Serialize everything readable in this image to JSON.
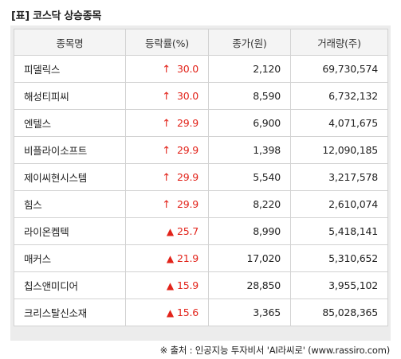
{
  "title": "[표] 코스닥 상승종목",
  "table": {
    "headers": [
      "종목명",
      "등락률(%)",
      "종가(원)",
      "거래량(주)"
    ],
    "rows": [
      {
        "name": "피델릭스",
        "rate": "30.0",
        "marker": "↑",
        "price": "2,120",
        "volume": "69,730,574"
      },
      {
        "name": "해성티피씨",
        "rate": "30.0",
        "marker": "↑",
        "price": "8,590",
        "volume": "6,732,132"
      },
      {
        "name": "엔텔스",
        "rate": "29.9",
        "marker": "↑",
        "price": "6,900",
        "volume": "4,071,675"
      },
      {
        "name": "비플라이소프트",
        "rate": "29.9",
        "marker": "↑",
        "price": "1,398",
        "volume": "12,090,185"
      },
      {
        "name": "제이씨현시스템",
        "rate": "29.9",
        "marker": "↑",
        "price": "5,540",
        "volume": "3,217,578"
      },
      {
        "name": "힘스",
        "rate": "29.9",
        "marker": "↑",
        "price": "8,220",
        "volume": "2,610,074"
      },
      {
        "name": "라이온켐텍",
        "rate": "25.7",
        "marker": "▲",
        "price": "8,990",
        "volume": "5,418,141"
      },
      {
        "name": "매커스",
        "rate": "21.9",
        "marker": "▲",
        "price": "17,020",
        "volume": "5,310,652"
      },
      {
        "name": "칩스앤미디어",
        "rate": "15.9",
        "marker": "▲",
        "price": "28,850",
        "volume": "3,955,102"
      },
      {
        "name": "크리스탈신소재",
        "rate": "15.6",
        "marker": "▲",
        "price": "3,365",
        "volume": "85,028,365"
      }
    ]
  },
  "source": "※ 출처 : 인공지능 투자비서 'AI라씨로' (www.rassiro.com)",
  "colors": {
    "rise": "#e2231a",
    "header_bg": "#f4f4f4",
    "frame_bg": "#ececec",
    "border": "#d2d2d2"
  }
}
